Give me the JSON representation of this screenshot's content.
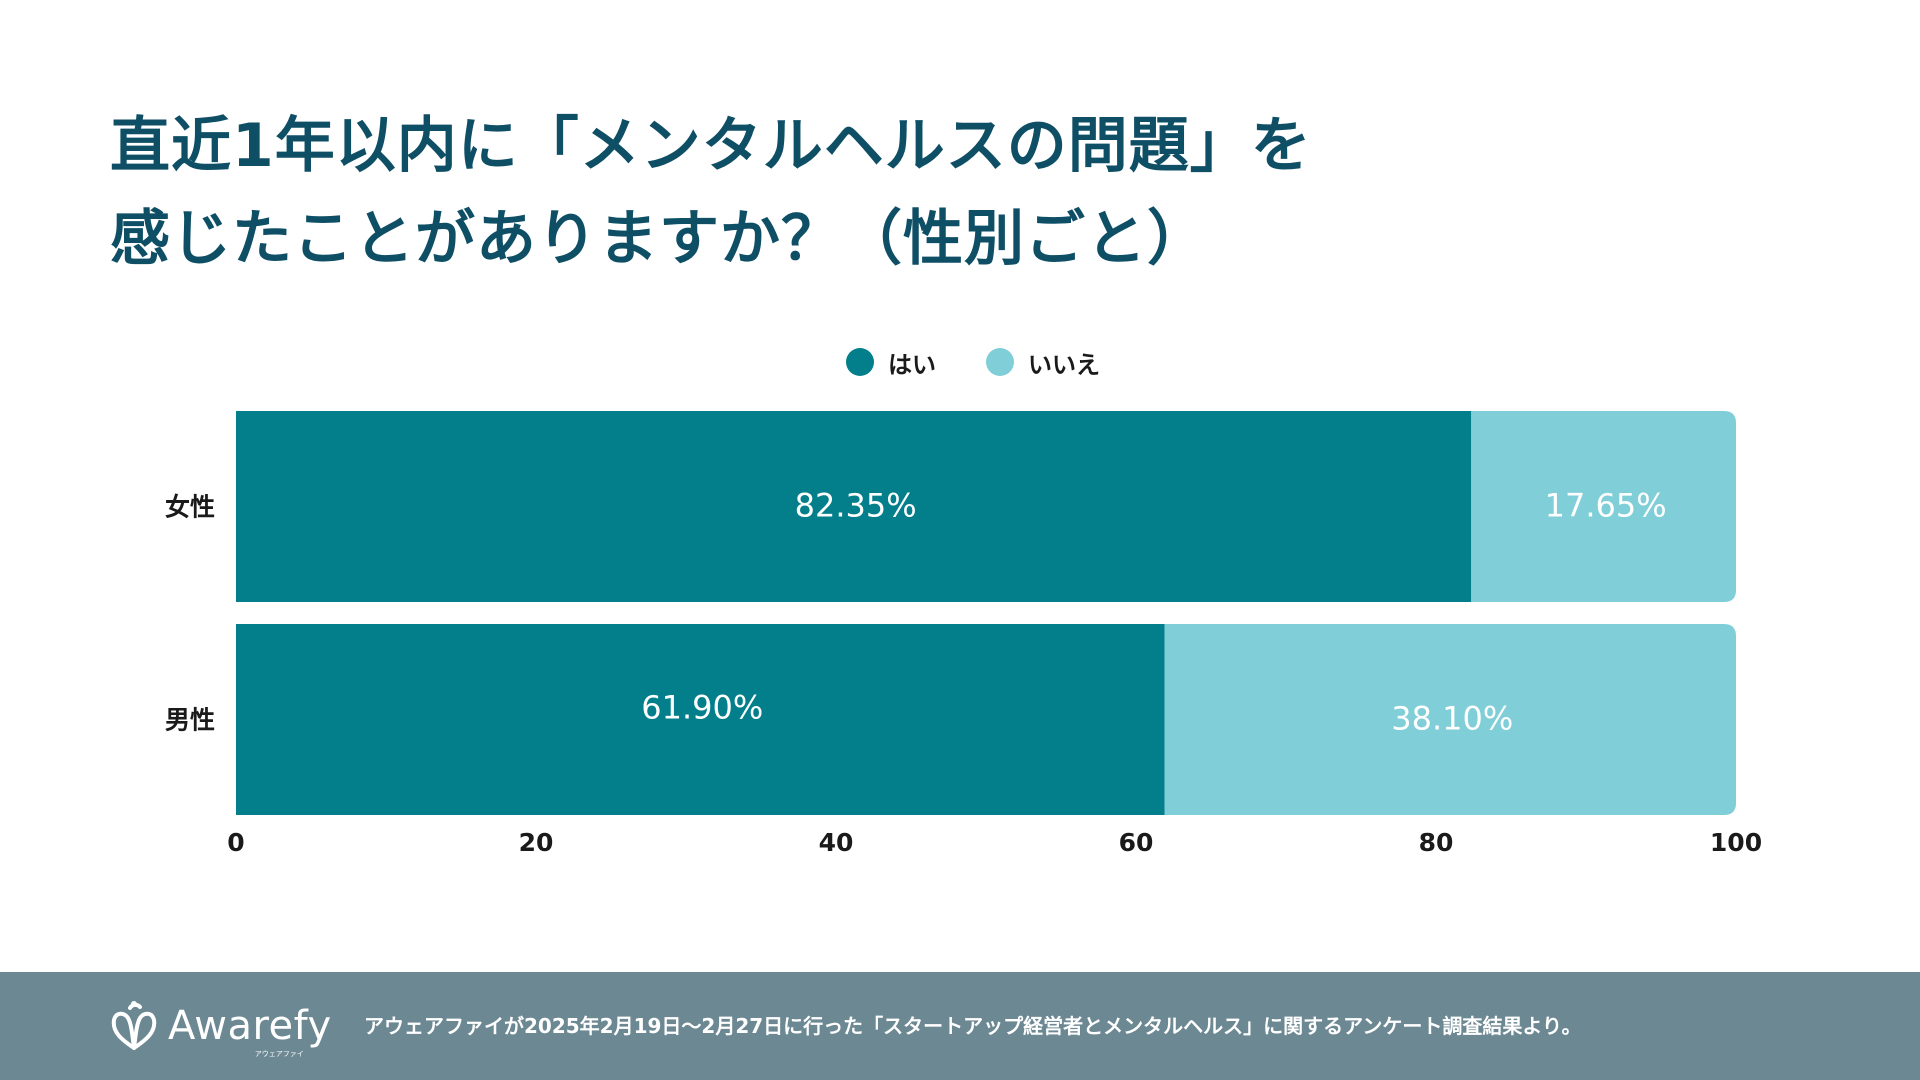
{
  "title": {
    "line1": "直近1年以内に「メンタルヘルスの問題」を",
    "line2": "感じたことがありますか？（性別ごと）"
  },
  "colors": {
    "yes": "#037f8b",
    "no": "#7fced8",
    "title": "#0e4f66",
    "footer_bg": "#6c8893"
  },
  "chart_data": {
    "type": "bar",
    "orientation": "horizontal",
    "stacked": true,
    "categories": [
      "女性",
      "男性"
    ],
    "series": [
      {
        "name": "はい",
        "values": [
          82.35,
          61.9
        ],
        "labels": [
          "82.35%",
          "61.90%"
        ]
      },
      {
        "name": "いいえ",
        "values": [
          17.65,
          38.1
        ],
        "labels": [
          "17.65%",
          "38.10%"
        ]
      }
    ],
    "xlim": [
      0,
      100
    ],
    "xticks": [
      0,
      20,
      40,
      60,
      80,
      100
    ],
    "legend_position": "top-center",
    "grid": false
  },
  "footer": {
    "logo_text": "Awarefy",
    "logo_sub": "アウェアファイ",
    "note": "アウェアファイが2025年2月19日〜2月27日に行った「スタートアップ経営者とメンタルヘルス」に関するアンケート調査結果より。"
  }
}
